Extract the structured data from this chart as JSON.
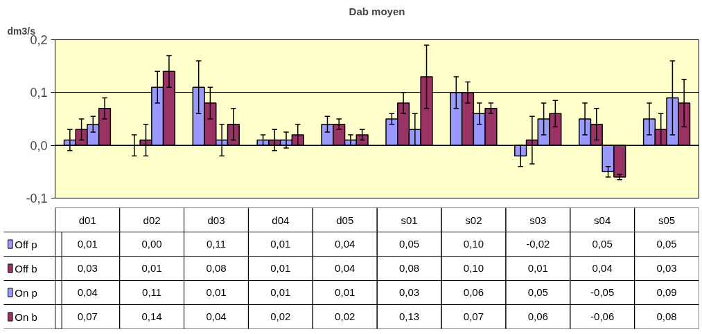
{
  "chart_data": {
    "type": "bar",
    "title": "Dab moyen",
    "ylabel": "dm3/s",
    "categories": [
      "d01",
      "d02",
      "d03",
      "d04",
      "d05",
      "s01",
      "s02",
      "s03",
      "s04",
      "s05"
    ],
    "series": [
      {
        "name": "Off p",
        "color": "#9999ff",
        "values": [
          0.01,
          0.0,
          0.11,
          0.01,
          0.04,
          0.05,
          0.1,
          -0.02,
          0.05,
          0.05
        ],
        "value_labels": [
          "0,01",
          "0,00",
          "0,11",
          "0,01",
          "0,04",
          "0,05",
          "0,10",
          "-0,02",
          "0,05",
          "0,05"
        ],
        "errors": [
          0.02,
          0.02,
          0.05,
          0.01,
          0.015,
          0.01,
          0.03,
          0.02,
          0.03,
          0.03
        ]
      },
      {
        "name": "Off b",
        "color": "#993366",
        "values": [
          0.03,
          0.01,
          0.08,
          0.01,
          0.04,
          0.08,
          0.1,
          0.01,
          0.04,
          0.03
        ],
        "value_labels": [
          "0,03",
          "0,01",
          "0,08",
          "0,01",
          "0,04",
          "0,08",
          "0,10",
          "0,01",
          "0,04",
          "0,03"
        ],
        "errors": [
          0.02,
          0.03,
          0.03,
          0.02,
          0.01,
          0.02,
          0.02,
          0.045,
          0.03,
          0.03
        ]
      },
      {
        "name": "On p",
        "color": "#9999ff",
        "values": [
          0.04,
          0.11,
          0.01,
          0.01,
          0.01,
          0.03,
          0.06,
          0.05,
          -0.05,
          0.09
        ],
        "value_labels": [
          "0,04",
          "0,11",
          "0,01",
          "0,01",
          "0,01",
          "0,03",
          "0,06",
          "0,05",
          "-0,05",
          "0,09"
        ],
        "errors": [
          0.015,
          0.03,
          0.03,
          0.015,
          0.01,
          0.03,
          0.02,
          0.03,
          0.01,
          0.07
        ]
      },
      {
        "name": "On b",
        "color": "#993366",
        "values": [
          0.07,
          0.14,
          0.04,
          0.02,
          0.02,
          0.13,
          0.07,
          0.06,
          -0.06,
          0.08
        ],
        "value_labels": [
          "0,07",
          "0,14",
          "0,04",
          "0,02",
          "0,02",
          "0,13",
          "0,07",
          "0,06",
          "-0,06",
          "0,08"
        ],
        "errors": [
          0.02,
          0.03,
          0.03,
          0.02,
          0.01,
          0.06,
          0.01,
          0.025,
          0.005,
          0.045
        ]
      }
    ],
    "ylim": [
      -0.1,
      0.2
    ],
    "yticks": [
      {
        "value": -0.1,
        "label": "-0,1"
      },
      {
        "value": 0,
        "label": "0,0"
      },
      {
        "value": 0.1,
        "label": "0,1"
      },
      {
        "value": 0.2,
        "label": "0,2"
      }
    ],
    "grid": "y",
    "legend": "bottom left"
  }
}
